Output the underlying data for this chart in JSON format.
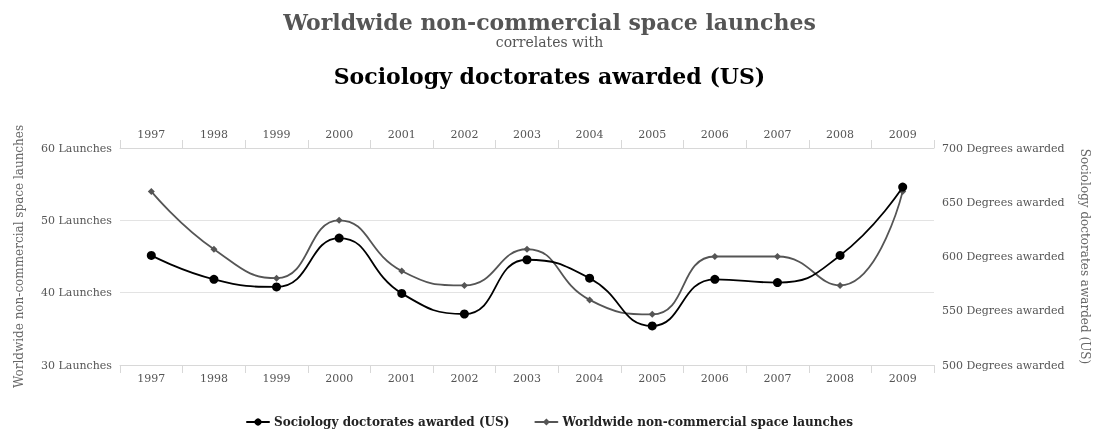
{
  "chart_data": {
    "type": "line",
    "title": "Worldwide non-commercial space launches",
    "subtitle": "correlates with",
    "annotations": [
      "Sociology doctorates awarded (US)"
    ],
    "categories": [
      "1997",
      "1998",
      "1999",
      "2000",
      "2001",
      "2002",
      "2003",
      "2004",
      "2005",
      "2006",
      "2007",
      "2008",
      "2009"
    ],
    "series": [
      {
        "name": "Sociology doctorates awarded (US)",
        "color": "#000000",
        "axis": "y2",
        "marker": "circle",
        "values": [
          601,
          579,
          572,
          617,
          566,
          547,
          597,
          580,
          536,
          579,
          576,
          601,
          664
        ]
      },
      {
        "name": "Worldwide non-commercial space launches",
        "color": "#555555",
        "axis": "y",
        "marker": "diamond",
        "values": [
          54,
          46,
          42,
          50,
          43,
          41,
          46,
          39,
          37,
          45,
          45,
          41,
          54
        ]
      }
    ],
    "ylabel": "Worldwide non-commercial space launches",
    "y2label": "Sociology doctorates awarded (US)",
    "ylim": [
      30,
      60
    ],
    "yticks": [
      {
        "value": 30,
        "label": "30 Launches"
      },
      {
        "value": 40,
        "label": "40 Launches"
      },
      {
        "value": 50,
        "label": "50 Launches"
      },
      {
        "value": 60,
        "label": "60 Launches"
      }
    ],
    "y2lim": [
      500,
      700
    ],
    "y2ticks": [
      {
        "value": 500,
        "label": "500 Degrees awarded"
      },
      {
        "value": 550,
        "label": "550 Degrees awarded"
      },
      {
        "value": 600,
        "label": "600 Degrees awarded"
      },
      {
        "value": 650,
        "label": "650 Degrees awarded"
      },
      {
        "value": 700,
        "label": "700 Degrees awarded"
      }
    ],
    "grid": "y",
    "legend": "bottom",
    "line_style": "solid"
  }
}
